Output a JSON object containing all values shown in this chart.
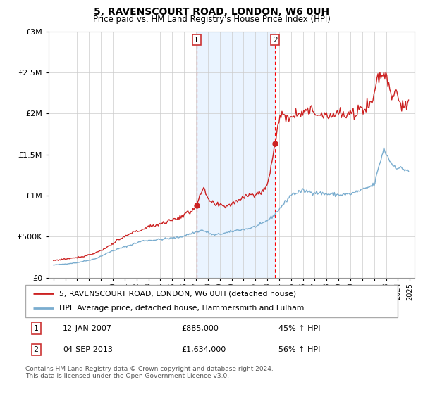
{
  "title": "5, RAVENSCOURT ROAD, LONDON, W6 0UH",
  "subtitle": "Price paid vs. HM Land Registry's House Price Index (HPI)",
  "legend_entry1": "5, RAVENSCOURT ROAD, LONDON, W6 0UH (detached house)",
  "legend_entry2": "HPI: Average price, detached house, Hammersmith and Fulham",
  "annotation1_date": "12-JAN-2007",
  "annotation1_price": "£885,000",
  "annotation1_hpi": "45% ↑ HPI",
  "annotation1_date_num": 2007.04,
  "annotation1_value": 885000,
  "annotation2_date": "04-SEP-2013",
  "annotation2_price": "£1,634,000",
  "annotation2_hpi": "56% ↑ HPI",
  "annotation2_date_num": 2013.67,
  "annotation2_value": 1634000,
  "footer": "Contains HM Land Registry data © Crown copyright and database right 2024.\nThis data is licensed under the Open Government Licence v3.0.",
  "line1_color": "#cc2222",
  "line2_color": "#7aadcf",
  "shade_color": "#ddeeff",
  "ylim": [
    0,
    3000000
  ],
  "yticks": [
    0,
    500000,
    1000000,
    1500000,
    2000000,
    2500000,
    3000000
  ],
  "xlim_start": 1994.6,
  "xlim_end": 2025.4,
  "hpi_keypoints": [
    [
      1995.0,
      155000
    ],
    [
      1996.0,
      168000
    ],
    [
      1997.0,
      185000
    ],
    [
      1998.5,
      230000
    ],
    [
      2000.0,
      330000
    ],
    [
      2001.5,
      400000
    ],
    [
      2002.5,
      450000
    ],
    [
      2003.5,
      460000
    ],
    [
      2004.5,
      475000
    ],
    [
      2005.5,
      490000
    ],
    [
      2006.5,
      535000
    ],
    [
      2007.5,
      580000
    ],
    [
      2008.5,
      520000
    ],
    [
      2009.5,
      545000
    ],
    [
      2010.5,
      580000
    ],
    [
      2011.5,
      600000
    ],
    [
      2012.5,
      650000
    ],
    [
      2013.5,
      750000
    ],
    [
      2014.5,
      920000
    ],
    [
      2015.0,
      1010000
    ],
    [
      2016.0,
      1060000
    ],
    [
      2017.0,
      1040000
    ],
    [
      2018.0,
      1020000
    ],
    [
      2019.0,
      1010000
    ],
    [
      2020.0,
      1020000
    ],
    [
      2021.0,
      1070000
    ],
    [
      2022.0,
      1130000
    ],
    [
      2022.8,
      1570000
    ],
    [
      2023.5,
      1380000
    ],
    [
      2024.0,
      1340000
    ],
    [
      2024.8,
      1310000
    ]
  ],
  "prop_keypoints": [
    [
      1995.0,
      210000
    ],
    [
      1996.0,
      230000
    ],
    [
      1997.5,
      260000
    ],
    [
      1998.5,
      300000
    ],
    [
      1999.5,
      370000
    ],
    [
      2000.5,
      460000
    ],
    [
      2001.5,
      540000
    ],
    [
      2002.5,
      590000
    ],
    [
      2003.5,
      640000
    ],
    [
      2004.5,
      680000
    ],
    [
      2005.5,
      730000
    ],
    [
      2006.5,
      800000
    ],
    [
      2007.04,
      885000
    ],
    [
      2007.6,
      1080000
    ],
    [
      2008.2,
      920000
    ],
    [
      2008.8,
      880000
    ],
    [
      2009.5,
      875000
    ],
    [
      2010.0,
      900000
    ],
    [
      2010.8,
      970000
    ],
    [
      2011.5,
      1030000
    ],
    [
      2012.0,
      1000000
    ],
    [
      2012.5,
      1050000
    ],
    [
      2013.0,
      1120000
    ],
    [
      2013.3,
      1350000
    ],
    [
      2013.67,
      1634000
    ],
    [
      2014.0,
      1950000
    ],
    [
      2014.5,
      1960000
    ],
    [
      2015.0,
      1980000
    ],
    [
      2015.5,
      2000000
    ],
    [
      2016.0,
      2050000
    ],
    [
      2016.5,
      2020000
    ],
    [
      2017.0,
      2020000
    ],
    [
      2017.5,
      1990000
    ],
    [
      2018.0,
      2000000
    ],
    [
      2018.5,
      1980000
    ],
    [
      2019.0,
      2010000
    ],
    [
      2019.5,
      1970000
    ],
    [
      2020.0,
      1980000
    ],
    [
      2020.5,
      2010000
    ],
    [
      2021.0,
      2080000
    ],
    [
      2021.5,
      2100000
    ],
    [
      2022.0,
      2200000
    ],
    [
      2022.3,
      2480000
    ],
    [
      2022.6,
      2450000
    ],
    [
      2022.9,
      2500000
    ],
    [
      2023.2,
      2380000
    ],
    [
      2023.5,
      2200000
    ],
    [
      2023.8,
      2300000
    ],
    [
      2024.2,
      2150000
    ],
    [
      2024.5,
      2050000
    ],
    [
      2024.8,
      2100000
    ]
  ]
}
